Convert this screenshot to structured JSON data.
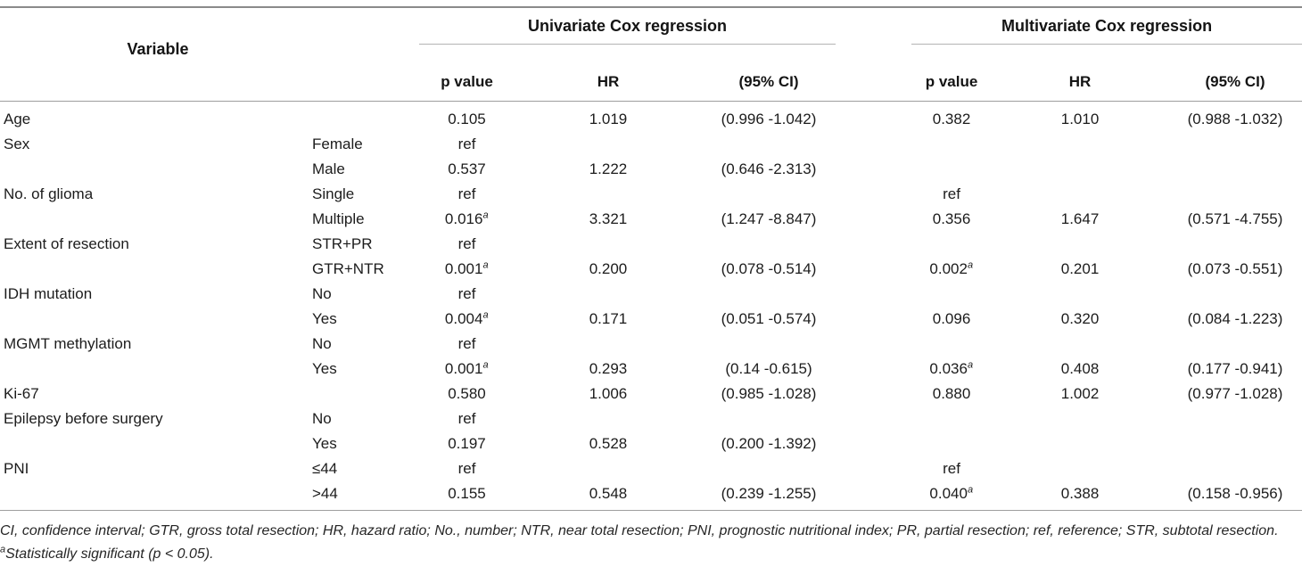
{
  "table": {
    "groups": {
      "univariate": "Univariate Cox regression",
      "multivariate": "Multivariate Cox regression"
    },
    "col_headers": {
      "variable": "Variable",
      "p_value": "p value",
      "hr": "HR",
      "ci": "(95% CI)"
    },
    "rows": [
      {
        "variable": "Age",
        "sub": "",
        "cells": [
          {
            "t": "0.105"
          },
          {
            "t": "1.019"
          },
          {
            "t": "(0.996 -1.042)"
          },
          {
            "t": "0.382"
          },
          {
            "t": "1.010"
          },
          {
            "t": "(0.988 -1.032)"
          }
        ]
      },
      {
        "variable": "Sex",
        "sub": "Female",
        "cells": [
          {
            "t": "ref"
          },
          {
            "t": ""
          },
          {
            "t": ""
          },
          {
            "t": ""
          },
          {
            "t": ""
          },
          {
            "t": ""
          }
        ]
      },
      {
        "variable": "",
        "sub": "Male",
        "cells": [
          {
            "t": "0.537"
          },
          {
            "t": "1.222"
          },
          {
            "t": "(0.646 -2.313)"
          },
          {
            "t": ""
          },
          {
            "t": ""
          },
          {
            "t": ""
          }
        ]
      },
      {
        "variable": "No. of glioma",
        "sub": "Single",
        "cells": [
          {
            "t": "ref"
          },
          {
            "t": ""
          },
          {
            "t": ""
          },
          {
            "t": "ref"
          },
          {
            "t": ""
          },
          {
            "t": ""
          }
        ]
      },
      {
        "variable": "",
        "sub": "Multiple",
        "cells": [
          {
            "t": "0.016",
            "sup": "a"
          },
          {
            "t": "3.321"
          },
          {
            "t": "(1.247 -8.847)"
          },
          {
            "t": "0.356"
          },
          {
            "t": "1.647"
          },
          {
            "t": "(0.571 -4.755)"
          }
        ]
      },
      {
        "variable": "Extent of resection",
        "sub": "STR+PR",
        "cells": [
          {
            "t": "ref"
          },
          {
            "t": ""
          },
          {
            "t": ""
          },
          {
            "t": ""
          },
          {
            "t": ""
          },
          {
            "t": ""
          }
        ]
      },
      {
        "variable": "",
        "sub": "GTR+NTR",
        "cells": [
          {
            "t": "0.001",
            "sup": "a"
          },
          {
            "t": "0.200"
          },
          {
            "t": "(0.078 -0.514)"
          },
          {
            "t": "0.002",
            "sup": "a"
          },
          {
            "t": "0.201"
          },
          {
            "t": "(0.073 -0.551)"
          }
        ]
      },
      {
        "variable": "IDH mutation",
        "sub": "No",
        "cells": [
          {
            "t": "ref"
          },
          {
            "t": ""
          },
          {
            "t": ""
          },
          {
            "t": ""
          },
          {
            "t": ""
          },
          {
            "t": ""
          }
        ]
      },
      {
        "variable": "",
        "sub": "Yes",
        "cells": [
          {
            "t": "0.004",
            "sup": "a"
          },
          {
            "t": "0.171"
          },
          {
            "t": "(0.051 -0.574)"
          },
          {
            "t": "0.096"
          },
          {
            "t": "0.320"
          },
          {
            "t": "(0.084 -1.223)"
          }
        ]
      },
      {
        "variable": "MGMT methylation",
        "sub": "No",
        "cells": [
          {
            "t": "ref"
          },
          {
            "t": ""
          },
          {
            "t": ""
          },
          {
            "t": ""
          },
          {
            "t": ""
          },
          {
            "t": ""
          }
        ]
      },
      {
        "variable": "",
        "sub": "Yes",
        "cells": [
          {
            "t": "0.001",
            "sup": "a"
          },
          {
            "t": "0.293"
          },
          {
            "t": "(0.14 -0.615)"
          },
          {
            "t": "0.036",
            "sup": "a"
          },
          {
            "t": "0.408"
          },
          {
            "t": "(0.177 -0.941)"
          }
        ]
      },
      {
        "variable": "Ki-67",
        "sub": "",
        "cells": [
          {
            "t": "0.580"
          },
          {
            "t": "1.006"
          },
          {
            "t": "(0.985 -1.028)"
          },
          {
            "t": "0.880"
          },
          {
            "t": "1.002"
          },
          {
            "t": "(0.977 -1.028)"
          }
        ]
      },
      {
        "variable": "Epilepsy before surgery",
        "sub": "No",
        "cells": [
          {
            "t": "ref"
          },
          {
            "t": ""
          },
          {
            "t": ""
          },
          {
            "t": ""
          },
          {
            "t": ""
          },
          {
            "t": ""
          }
        ]
      },
      {
        "variable": "",
        "sub": "Yes",
        "cells": [
          {
            "t": "0.197"
          },
          {
            "t": "0.528"
          },
          {
            "t": "(0.200 -1.392)"
          },
          {
            "t": ""
          },
          {
            "t": ""
          },
          {
            "t": ""
          }
        ]
      },
      {
        "variable": "PNI",
        "sub": "≤44",
        "cells": [
          {
            "t": "ref"
          },
          {
            "t": ""
          },
          {
            "t": ""
          },
          {
            "t": "ref"
          },
          {
            "t": ""
          },
          {
            "t": ""
          }
        ]
      },
      {
        "variable": "",
        "sub": ">44",
        "cells": [
          {
            "t": "0.155"
          },
          {
            "t": "0.548"
          },
          {
            "t": "(0.239 -1.255)"
          },
          {
            "t": "0.040",
            "sup": "a"
          },
          {
            "t": "0.388"
          },
          {
            "t": "(0.158 -0.956)"
          }
        ]
      }
    ],
    "footnotes": {
      "abbreviations": "CI, confidence interval; GTR, gross total resection; HR, hazard ratio; No., number; NTR, near total resection; PNI, prognostic nutritional index; PR, partial resection; ref, reference; STR, subtotal resection.",
      "sig_sup": "a",
      "sig_text": "Statistically significant (p < 0.05)."
    }
  }
}
